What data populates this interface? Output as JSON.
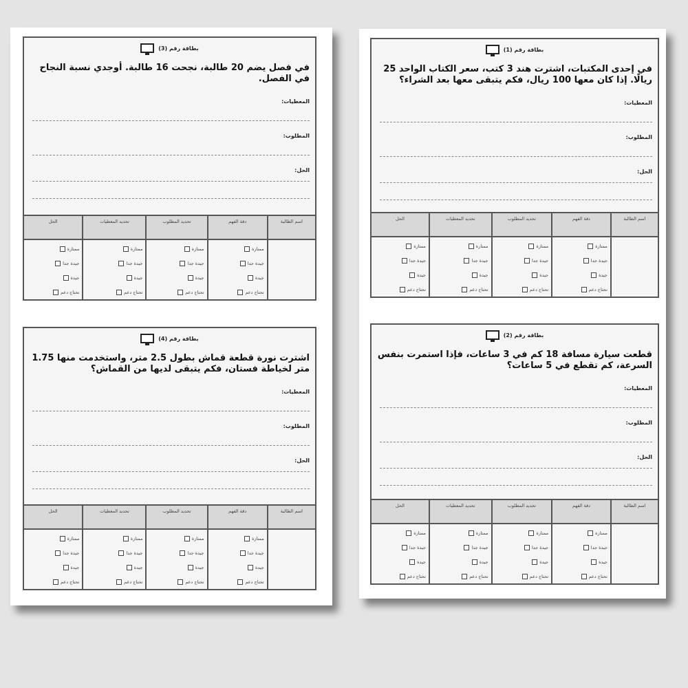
{
  "labels": {
    "givens": "المعطيات:",
    "required": "المطلوب:",
    "solution": "الحل:"
  },
  "table": {
    "headers": [
      "اسم الطالبة",
      "دقة الفهم",
      "تحديد المطلوب",
      "تحديد المعطيات",
      "الحل"
    ],
    "options": [
      "ممتازة",
      "جيدة جدا",
      "جيدة",
      "تحتاج دعم"
    ]
  },
  "cards": [
    {
      "title": "بطاقة رقم (1)",
      "question": "في إحدى المكتبات، اشترت هند 3 كتب، سعر الكتاب الواحد 25 ريالًا. إذا كان معها 100 ريال، فكم يتبقى معها بعد الشراء؟"
    },
    {
      "title": "بطاقة رقم (2)",
      "question": "قطعت سيارة مسافة 18 كم في 3 ساعات، فإذا استمرت بنفس السرعة، كم تقطع في 5 ساعات؟"
    },
    {
      "title": "بطاقة رقم (3)",
      "question": "في فصل يضم 20 طالبة، نجحت 16 طالبة. أوجدي نسبة النجاح في الفصل."
    },
    {
      "title": "بطاقة رقم (4)",
      "question": "اشترت نورة قطعة قماش بطول 2.5 متر، واستخدمت منها 1.75 متر لخياطة فستان، فكم يتبقى لديها من القماش؟"
    }
  ]
}
